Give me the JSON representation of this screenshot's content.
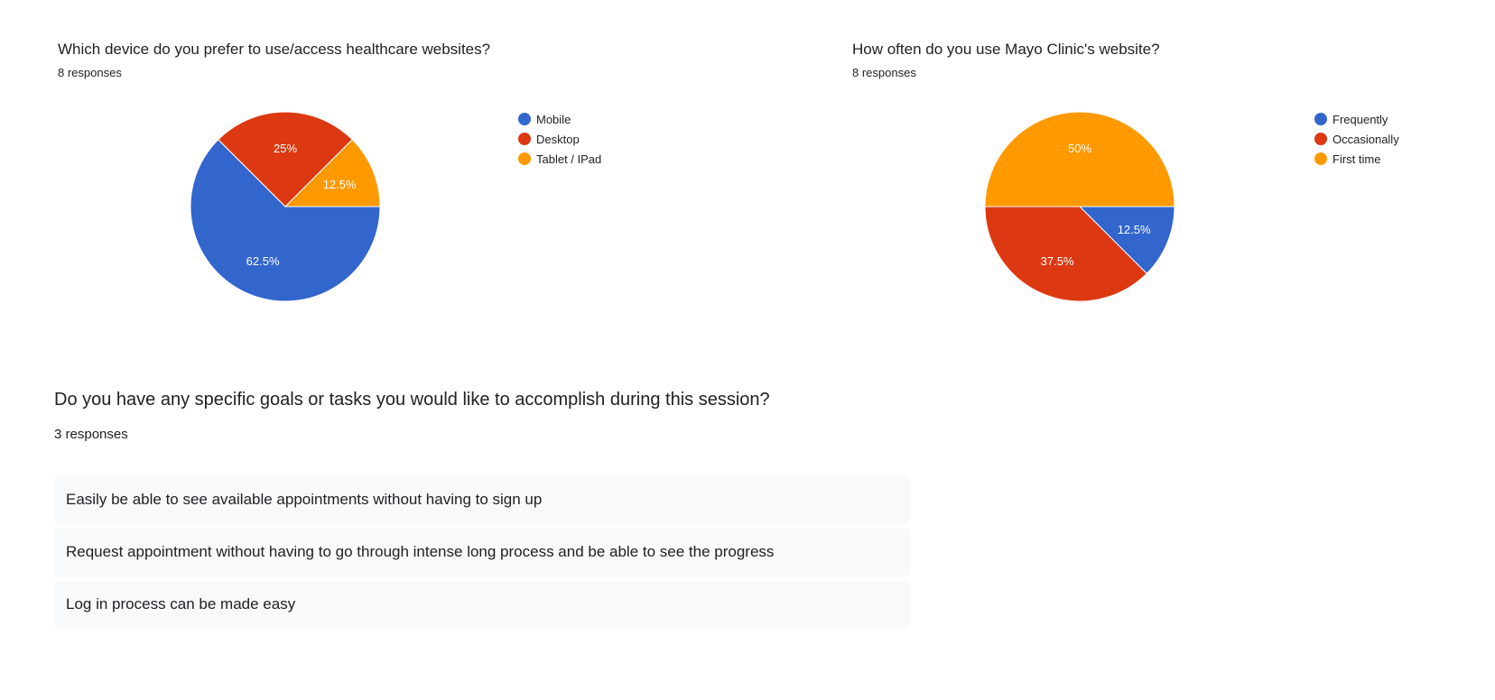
{
  "charts": {
    "device": {
      "title": "Which device do you prefer to use/access healthcare websites?",
      "responses": "8 responses"
    },
    "frequency": {
      "title": "How often do you use Mayo Clinic's website?",
      "responses": "8 responses"
    }
  },
  "text_question": {
    "title": "Do you have any specific goals or tasks you would like to accomplish during this session?",
    "responses": "3 responses",
    "answers": [
      "Easily be able to see available appointments without having to sign up",
      "Request appointment without having to go through intense long process and be able to see the progress",
      "Log in process can be made easy"
    ]
  },
  "chart_data": [
    {
      "type": "pie",
      "title": "Which device do you prefer to use/access healthcare websites?",
      "subtitle": "8 responses",
      "legend_position": "right",
      "slices": [
        {
          "label": "Mobile",
          "value": 62.5,
          "display": "62.5%",
          "color": "#3366cc"
        },
        {
          "label": "Desktop",
          "value": 25,
          "display": "25%",
          "color": "#dc3912"
        },
        {
          "label": "Tablet / IPad",
          "value": 12.5,
          "display": "12.5%",
          "color": "#ff9900"
        }
      ]
    },
    {
      "type": "pie",
      "title": "How often do you use Mayo Clinic's website?",
      "subtitle": "8 responses",
      "legend_position": "right",
      "slices": [
        {
          "label": "Frequently",
          "value": 12.5,
          "display": "12.5%",
          "color": "#3366cc"
        },
        {
          "label": "Occasionally",
          "value": 37.5,
          "display": "37.5%",
          "color": "#dc3912"
        },
        {
          "label": "First time",
          "value": 50,
          "display": "50%",
          "color": "#ff9900"
        }
      ]
    }
  ]
}
